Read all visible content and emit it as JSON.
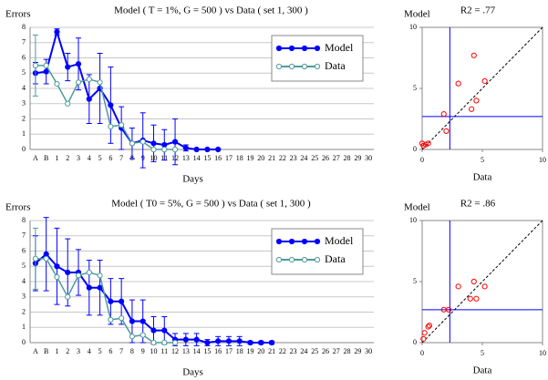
{
  "chart_data": [
    {
      "type": "line",
      "title": "Model  ( T = 1%, G = 500 )  vs  Data  ( set 1, 300 )",
      "ylabel": "Errors",
      "xlabel": "Days",
      "categories": [
        "A",
        "B",
        "1",
        "2",
        "3",
        "4",
        "5",
        "6",
        "7",
        "8",
        "9",
        "10",
        "11",
        "12",
        "13",
        "14",
        "15",
        "16",
        "17",
        "18",
        "19",
        "20",
        "21",
        "22",
        "23",
        "24",
        "25",
        "26",
        "27",
        "28",
        "29",
        "30"
      ],
      "ylim": [
        0,
        8
      ],
      "yticks": [
        0,
        1,
        2,
        3,
        4,
        5,
        6,
        7,
        8
      ],
      "grid": true,
      "legend": "upper right",
      "series": [
        {
          "name": "Model",
          "color": "#0000ff",
          "marker": "filled",
          "values": [
            5.0,
            5.1,
            7.7,
            5.4,
            5.6,
            3.3,
            4.0,
            2.9,
            1.4,
            0.4,
            0.6,
            0.4,
            0.3,
            0.5,
            0.1,
            0.0,
            0.0,
            0.0,
            null,
            null,
            null,
            null,
            null,
            null,
            null,
            null,
            null,
            null,
            null,
            null,
            null,
            null
          ],
          "errors": [
            0.7,
            0.8,
            0.2,
            0.9,
            1.7,
            1.6,
            2.3,
            2.5,
            1.4,
            1.0,
            1.8,
            1.2,
            1.0,
            1.5,
            0.2,
            0,
            0,
            0,
            null,
            null,
            null,
            null,
            null,
            null,
            null,
            null,
            null,
            null,
            null,
            null,
            null,
            null
          ]
        },
        {
          "name": "Data",
          "color": "#4f9a9a",
          "marker": "open",
          "values": [
            5.5,
            5.5,
            4.3,
            3.0,
            4.4,
            4.6,
            4.4,
            1.5,
            1.6,
            0.4,
            0.5,
            0.0,
            0.0,
            0.0,
            null,
            null,
            null,
            null,
            null,
            null,
            null,
            null,
            null,
            null,
            null,
            null,
            null,
            null,
            null,
            null,
            null,
            null
          ],
          "errors": [
            2.0,
            null,
            null,
            null,
            null,
            null,
            null,
            null,
            null,
            null,
            null,
            null,
            null,
            null,
            null,
            null,
            null,
            null,
            null,
            null,
            null,
            null,
            null,
            null,
            null,
            null,
            null,
            null,
            null,
            null,
            null,
            null
          ]
        }
      ]
    },
    {
      "type": "scatter",
      "title": "R2 = .77",
      "ylabel": "Model",
      "xlabel": "Data",
      "color": "#ff0000",
      "refcolor": "#0000ff",
      "x": [
        0.1,
        0.3,
        0.0,
        0.5,
        1.8,
        2.0,
        3.0,
        4.1,
        4.5,
        5.2,
        4.3
      ],
      "y": [
        0.3,
        0.4,
        0.5,
        0.5,
        2.9,
        1.5,
        5.4,
        3.3,
        4.0,
        5.6,
        7.7
      ],
      "xlim": [
        0,
        10
      ],
      "ylim": [
        0,
        10
      ],
      "xticks": [
        0,
        5,
        10
      ],
      "yticks": [
        0,
        5,
        10
      ],
      "vline": 2.3,
      "hline": 2.7
    },
    {
      "type": "line",
      "title": "Model  ( T0 = 5%, G = 500 )  vs  Data  ( set 1, 300 )",
      "ylabel": "Errors",
      "xlabel": "Days",
      "categories": [
        "A",
        "B",
        "1",
        "2",
        "3",
        "4",
        "5",
        "6",
        "7",
        "8",
        "9",
        "10",
        "11",
        "12",
        "13",
        "14",
        "15",
        "16",
        "17",
        "18",
        "19",
        "20",
        "21",
        "22",
        "23",
        "24",
        "25",
        "26",
        "27",
        "28",
        "29",
        "30"
      ],
      "ylim": [
        0,
        8
      ],
      "yticks": [
        0,
        1,
        2,
        3,
        4,
        5,
        6,
        7,
        8
      ],
      "grid": true,
      "legend": "upper right",
      "series": [
        {
          "name": "Model",
          "color": "#0000ff",
          "marker": "filled",
          "values": [
            5.2,
            5.8,
            5.0,
            4.6,
            4.6,
            3.6,
            3.6,
            2.7,
            2.7,
            1.4,
            1.4,
            0.8,
            0.8,
            0.2,
            0.2,
            0.2,
            0.0,
            0.1,
            0.1,
            0.1,
            0.0,
            0.0,
            0.0,
            null,
            null,
            null,
            null,
            null,
            null,
            null,
            null,
            null
          ],
          "errors": [
            1.8,
            2.4,
            2.5,
            2.2,
            1.5,
            1.8,
            1.8,
            1.5,
            1.5,
            1.4,
            1.4,
            0.9,
            0.9,
            0.4,
            0.4,
            0.4,
            0.2,
            0.3,
            0.3,
            0.3,
            0.1,
            0.1,
            0.1,
            null,
            null,
            null,
            null,
            null,
            null,
            null,
            null,
            null
          ]
        },
        {
          "name": "Data",
          "color": "#4f9a9a",
          "marker": "open",
          "values": [
            5.5,
            5.5,
            4.3,
            3.0,
            4.4,
            4.6,
            4.4,
            1.5,
            1.6,
            0.4,
            0.5,
            0.0,
            0.0,
            0.0,
            null,
            null,
            null,
            null,
            null,
            null,
            null,
            null,
            null,
            null,
            null,
            null,
            null,
            null,
            null,
            null,
            null,
            null
          ],
          "errors": [
            2.0,
            null,
            null,
            null,
            null,
            null,
            null,
            null,
            null,
            null,
            null,
            null,
            null,
            null,
            null,
            null,
            null,
            null,
            null,
            null,
            null,
            null,
            null,
            null,
            null,
            null,
            null,
            null,
            null,
            null,
            null,
            null
          ]
        }
      ]
    },
    {
      "type": "scatter",
      "title": "R2 = .86",
      "ylabel": "Model",
      "xlabel": "Data",
      "color": "#ff0000",
      "refcolor": "#0000ff",
      "x": [
        0.1,
        0.2,
        0.5,
        0.6,
        1.8,
        2.2,
        3.0,
        4.0,
        4.5,
        4.3,
        5.2
      ],
      "y": [
        0.3,
        0.8,
        1.3,
        1.4,
        2.7,
        2.7,
        4.6,
        3.6,
        3.6,
        5.0,
        4.6
      ],
      "xlim": [
        0,
        10
      ],
      "ylim": [
        0,
        10
      ],
      "xticks": [
        0,
        5,
        10
      ],
      "yticks": [
        0,
        5,
        10
      ],
      "vline": 2.3,
      "hline": 2.7
    }
  ]
}
